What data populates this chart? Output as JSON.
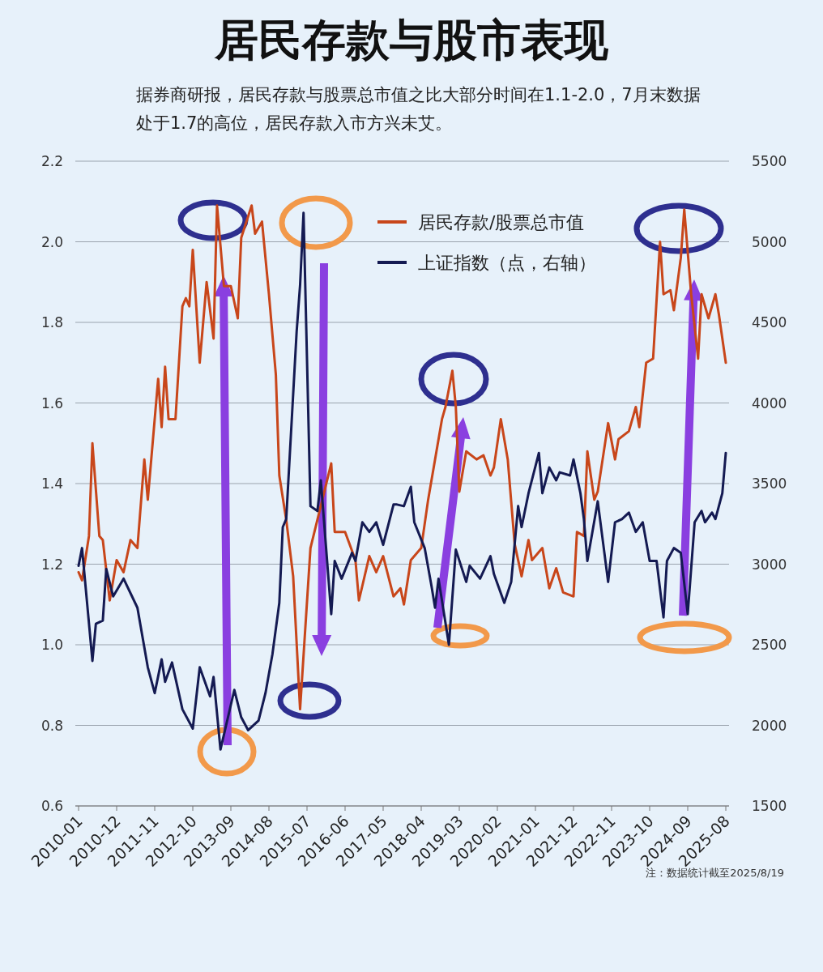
{
  "chart_data": {
    "type": "line",
    "title": "居民存款与股市表现",
    "subtitle": "据券商研报，居民存款与股票总市值之比大部分时间在1.1-2.0，7月末数据处于1.7的高位，居民存款入市方兴未艾。",
    "xlim": [
      "2010-01",
      "2025-08"
    ],
    "xticks": [
      "2010-01",
      "2010-12",
      "2011-11",
      "2012-10",
      "2013-09",
      "2014-08",
      "2015-07",
      "2016-06",
      "2017-05",
      "2018-04",
      "2019-03",
      "2020-02",
      "2021-01",
      "2021-12",
      "2022-11",
      "2023-10",
      "2024-09",
      "2025-08"
    ],
    "ylim": [
      0.6,
      2.2
    ],
    "yticks": [
      0.6,
      0.8,
      {
        "value": 1,
        "label": "1.0"
      },
      1.2,
      1.4,
      1.6,
      1.8,
      {
        "value": 2,
        "label": "2.0"
      },
      2.2
    ],
    "y2lim": [
      1500,
      5500
    ],
    "y2ticks": [
      1500,
      2000,
      2500,
      3000,
      3500,
      4000,
      4500,
      5000,
      5500
    ],
    "grid": "y",
    "legend": "top right",
    "series": [
      {
        "name": "居民存款/股票总市值",
        "color": "#c8461a",
        "axis": "y",
        "x": [
          "2010-01",
          "2010-02",
          "2010-04",
          "2010-05",
          "2010-07",
          "2010-08",
          "2010-10",
          "2010-12",
          "2011-02",
          "2011-04",
          "2011-06",
          "2011-08",
          "2011-09",
          "2011-12",
          "2012-01",
          "2012-02",
          "2012-03",
          "2012-05",
          "2012-07",
          "2012-08",
          "2012-09",
          "2012-10",
          "2012-12",
          "2013-02",
          "2013-04",
          "2013-05",
          "2013-07",
          "2013-09",
          "2013-11",
          "2013-12",
          "2014-03",
          "2014-04",
          "2014-06",
          "2014-08",
          "2014-10",
          "2014-11",
          "2015-01",
          "2015-03",
          "2015-05",
          "2015-08",
          "2016-02",
          "2016-03",
          "2016-06",
          "2016-09",
          "2016-10",
          "2017-01",
          "2017-03",
          "2017-05",
          "2017-08",
          "2017-10",
          "2017-11",
          "2018-01",
          "2018-04",
          "2018-06",
          "2018-08",
          "2018-10",
          "2018-11",
          "2019-01",
          "2019-02",
          "2019-03",
          "2019-05",
          "2019-08",
          "2019-10",
          "2019-12",
          "2020-01",
          "2020-03",
          "2020-05",
          "2020-07",
          "2020-09",
          "2020-11",
          "2020-12",
          "2021-03",
          "2021-05",
          "2021-07",
          "2021-09",
          "2021-12",
          "2022-01",
          "2022-03",
          "2022-04",
          "2022-06",
          "2022-07",
          "2022-10",
          "2022-12",
          "2023-01",
          "2023-04",
          "2023-06",
          "2023-07",
          "2023-09",
          "2023-11",
          "2024-01",
          "2024-02",
          "2024-04",
          "2024-05",
          "2024-07",
          "2024-08",
          "2024-10",
          "2024-12",
          "2025-01",
          "2025-03",
          "2025-05",
          "2025-06",
          "2025-08"
        ],
        "values": [
          1.18,
          1.16,
          1.27,
          1.5,
          1.27,
          1.26,
          1.11,
          1.21,
          1.18,
          1.26,
          1.24,
          1.46,
          1.36,
          1.66,
          1.54,
          1.69,
          1.56,
          1.56,
          1.84,
          1.86,
          1.84,
          1.98,
          1.7,
          1.9,
          1.76,
          2.09,
          1.89,
          1.89,
          1.81,
          2.01,
          2.09,
          2.02,
          2.05,
          1.87,
          1.67,
          1.42,
          1.31,
          1.17,
          0.84,
          1.24,
          1.45,
          1.28,
          1.28,
          1.21,
          1.11,
          1.22,
          1.18,
          1.22,
          1.12,
          1.14,
          1.1,
          1.21,
          1.24,
          1.36,
          1.46,
          1.56,
          1.59,
          1.68,
          1.59,
          1.38,
          1.48,
          1.46,
          1.47,
          1.42,
          1.44,
          1.56,
          1.46,
          1.25,
          1.17,
          1.26,
          1.21,
          1.24,
          1.14,
          1.19,
          1.13,
          1.12,
          1.28,
          1.27,
          1.48,
          1.36,
          1.38,
          1.55,
          1.46,
          1.51,
          1.53,
          1.59,
          1.54,
          1.7,
          1.71,
          2.0,
          1.87,
          1.88,
          1.83,
          1.96,
          2.08,
          1.87,
          1.71,
          1.87,
          1.81,
          1.87,
          1.82,
          1.7
        ]
      },
      {
        "name": "上证指数（点，右轴）",
        "color": "#141a52",
        "axis": "y2",
        "x": [
          "2010-01",
          "2010-02",
          "2010-05",
          "2010-06",
          "2010-08",
          "2010-09",
          "2010-11",
          "2011-02",
          "2011-06",
          "2011-09",
          "2011-11",
          "2012-01",
          "2012-02",
          "2012-04",
          "2012-07",
          "2012-10",
          "2012-12",
          "2013-03",
          "2013-04",
          "2013-06",
          "2013-10",
          "2013-12",
          "2014-02",
          "2014-05",
          "2014-07",
          "2014-09",
          "2014-11",
          "2014-12",
          "2015-01",
          "2015-04",
          "2015-05",
          "2015-06",
          "2015-08",
          "2015-10",
          "2015-11",
          "2016-02",
          "2016-03",
          "2016-05",
          "2016-08",
          "2016-09",
          "2016-11",
          "2017-01",
          "2017-03",
          "2017-05",
          "2017-08",
          "2017-09",
          "2017-11",
          "2018-01",
          "2018-02",
          "2018-05",
          "2018-07",
          "2018-08",
          "2018-09",
          "2018-12",
          "2019-02",
          "2019-05",
          "2019-06",
          "2019-09",
          "2019-12",
          "2020-01",
          "2020-04",
          "2020-06",
          "2020-08",
          "2020-09",
          "2020-11",
          "2021-02",
          "2021-03",
          "2021-05",
          "2021-07",
          "2021-08",
          "2021-11",
          "2021-12",
          "2022-02",
          "2022-03",
          "2022-04",
          "2022-07",
          "2022-10",
          "2022-12",
          "2023-02",
          "2023-04",
          "2023-06",
          "2023-08",
          "2023-10",
          "2023-12",
          "2024-02",
          "2024-03",
          "2024-05",
          "2024-07",
          "2024-09",
          "2024-11",
          "2025-01",
          "2025-02",
          "2025-04",
          "2025-05",
          "2025-07",
          "2025-08"
        ],
        "values": [
          2990,
          3100,
          2400,
          2630,
          2650,
          2970,
          2800,
          2910,
          2730,
          2360,
          2200,
          2410,
          2270,
          2390,
          2100,
          1980,
          2360,
          2180,
          2300,
          1850,
          2220,
          2050,
          1970,
          2030,
          2200,
          2440,
          2760,
          3230,
          3280,
          4440,
          4730,
          5180,
          3360,
          3330,
          3520,
          2690,
          3020,
          2910,
          3070,
          3020,
          3260,
          3200,
          3260,
          3120,
          3370,
          3370,
          3360,
          3480,
          3260,
          3100,
          2860,
          2730,
          2910,
          2500,
          3090,
          2890,
          2990,
          2910,
          3050,
          2940,
          2760,
          2890,
          3360,
          3230,
          3440,
          3690,
          3440,
          3600,
          3520,
          3570,
          3550,
          3650,
          3440,
          3280,
          3020,
          3390,
          2890,
          3260,
          3280,
          3320,
          3200,
          3260,
          3020,
          3020,
          2670,
          3020,
          3100,
          3070,
          2690,
          3260,
          3330,
          3260,
          3320,
          3280,
          3440,
          3690
        ]
      }
    ],
    "annotations": [
      "注：数据统计截至2025/8/19"
    ]
  }
}
